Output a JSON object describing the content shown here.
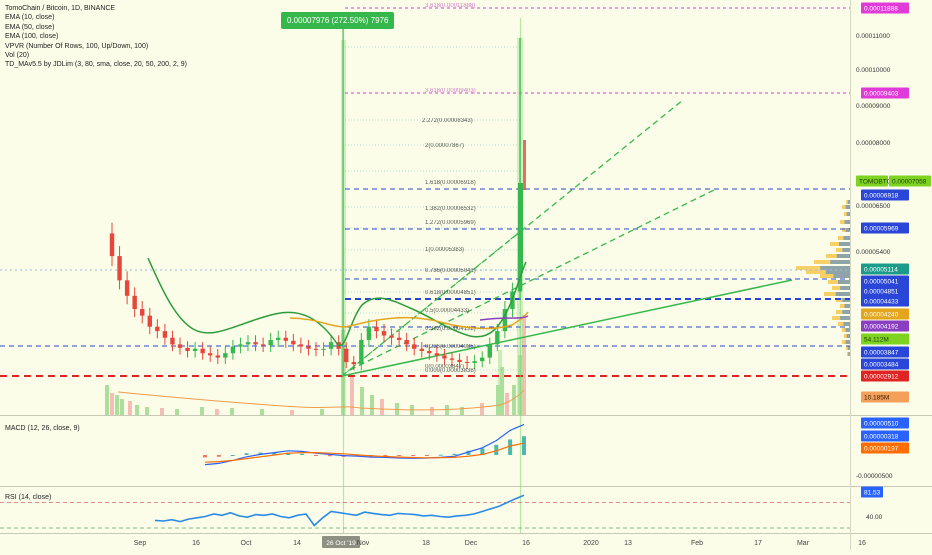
{
  "legend": {
    "title": "TomoChain / Bitcoin, 1D, BINANCE",
    "indicators": [
      "EMA (10, close)",
      "EMA (50, close)",
      "EMA (100, close)",
      "VPVR (Number Of Rows, 100, Up/Down, 100)",
      "Vol (20)",
      "TD_MAv5.5 by JDLim (3, 80, sma, close, 20, 50, 200, 2, 9)"
    ]
  },
  "measure_label": "0.00007976 (272.50%) 7976",
  "colors": {
    "up": "#35b84c",
    "down": "#e8463c",
    "bg": "#fbfde9",
    "ema10": "#2e9c3c",
    "ema50": "#e3a51b",
    "ema100": "#8a3ec2",
    "dash_blue": "#2946d8",
    "dash_red": "#e02424",
    "dash_magenta": "#e03ad9",
    "fib_teal": "#0e8ea1"
  },
  "chart_data": [
    {
      "type": "candlestick",
      "pane": "price",
      "x_tick_labels": [
        "Sep",
        "16",
        "Oct",
        "14",
        "26 Oct '19",
        "Nov",
        "18",
        "Dec",
        "16",
        "2020",
        "13",
        "Feb",
        "17",
        "Mar",
        "16"
      ],
      "y_axis_labels": [
        "0.00011000",
        "0.00010000",
        "0.00009000",
        "0.00008000",
        "0.00006500",
        "0.00005400"
      ],
      "price_tags": [
        {
          "label": "0.00011888",
          "color": "#e03ad9"
        },
        {
          "label": "0.00009403",
          "color": "#e03ad9"
        },
        {
          "label": "TOMOBTC",
          "color": "#7ed321",
          "text_color": "#1a3a00"
        },
        {
          "label": "0.00007058",
          "color": "#7ed321",
          "text_color": "#1a3a00"
        },
        {
          "label": "0.00006918",
          "color": "#2946d8"
        },
        {
          "label": "0.00005969",
          "color": "#2946d8"
        },
        {
          "label": "0.00005114",
          "color": "#1c9b8a"
        },
        {
          "label": "0.00005041",
          "color": "#2946d8"
        },
        {
          "label": "0.00004851",
          "color": "#2946d8"
        },
        {
          "label": "0.00004433",
          "color": "#2946d8"
        },
        {
          "label": "0.00004240",
          "color": "#e3a51b"
        },
        {
          "label": "0.00004192",
          "color": "#8a3ec2"
        },
        {
          "label": "54.112M",
          "color": "#7ed321",
          "text_color": "#1a3a00"
        },
        {
          "label": "0.00003847",
          "color": "#2946d8"
        },
        {
          "label": "0.00003484",
          "color": "#2946d8"
        },
        {
          "label": "0.00002912",
          "color": "#e02424"
        },
        {
          "label": "10.185M",
          "color": "#f2a05a",
          "text_color": "#3a1a00"
        }
      ],
      "fib_labels": [
        "3.618(0.00011888)",
        "3.618(0.00009403)",
        "2.272(0.00008343)",
        "2(0.00007867)",
        "1.618(0.00006918)",
        "1.382(0.00006532)",
        "1.272(0.00005969)",
        "1(0.00005383)",
        "0.786(0.00005041)",
        "0.618(0.00004851)",
        "0.5(0.00004433)",
        "0.382(0.00004192)",
        "0.236(0.00004085)",
        "0(0.00003847)",
        "0.000(0.00003838)"
      ],
      "close_series": [
        6.4e-05,
        5.85e-05,
        5.5e-05,
        5.2e-05,
        5.05e-05,
        4.8e-05,
        4.7e-05,
        4.55e-05,
        4.4e-05,
        4.32e-05,
        4.25e-05,
        4.3e-05,
        4.2e-05,
        4.15e-05,
        4.1e-05,
        4.2e-05,
        4.35e-05,
        4.4e-05,
        4.45e-05,
        4.4e-05,
        4.38e-05,
        4.5e-05,
        4.55e-05,
        4.48e-05,
        4.4e-05,
        4.35e-05,
        4.3e-05,
        4.28e-05,
        4.3e-05,
        4.45e-05,
        4.3e-05,
        4e-05,
        3.95e-05,
        4.5e-05,
        4.8e-05,
        4.7e-05,
        4.6e-05,
        4.55e-05,
        4.5e-05,
        4.4e-05,
        4.3e-05,
        4.25e-05,
        4.2e-05,
        4.15e-05,
        4.08e-05,
        4.05e-05,
        4e-05,
        3.98e-05,
        4.02e-05,
        4.1e-05,
        4.4e-05,
        4.7e-05,
        5.2e-05,
        5.6e-05,
        7.05e-05
      ]
    },
    {
      "type": "line",
      "pane": "macd",
      "title": "MACD (12, 26, close, 9)",
      "y_axis_labels": [
        "0.00000510",
        "0.00000318",
        "0.00000197",
        "-0.00000500"
      ],
      "macd": [
        -1.6,
        -1.4,
        -0.9,
        -0.3,
        0.1,
        0.4,
        0.7,
        0.6,
        0.3,
        0.1,
        -0.1,
        -0.2,
        -0.35,
        -0.4,
        -0.5,
        -0.55,
        -0.5,
        -0.4,
        -0.2,
        0.5,
        1.2,
        2.4,
        4.1,
        5.1
      ],
      "signal": [
        -1.2,
        -1.1,
        -0.9,
        -0.6,
        -0.3,
        0.0,
        0.3,
        0.4,
        0.4,
        0.3,
        0.2,
        0.0,
        -0.15,
        -0.25,
        -0.35,
        -0.42,
        -0.46,
        -0.45,
        -0.4,
        -0.2,
        0.1,
        0.7,
        1.5,
        1.97
      ]
    },
    {
      "type": "line",
      "pane": "rsi",
      "title": "RSI (14, close)",
      "y_axis_labels": [
        "81.53",
        "40.00"
      ],
      "values": [
        42,
        41,
        43,
        40,
        44,
        46,
        48,
        52,
        50,
        54,
        49,
        47,
        51,
        50,
        52,
        48,
        46,
        50,
        52,
        34,
        46,
        56,
        54,
        52,
        50,
        55,
        53,
        51,
        50,
        53,
        52,
        51,
        49,
        50,
        48,
        47,
        49,
        50,
        52,
        56,
        60,
        64,
        70,
        76,
        81.53
      ]
    }
  ]
}
